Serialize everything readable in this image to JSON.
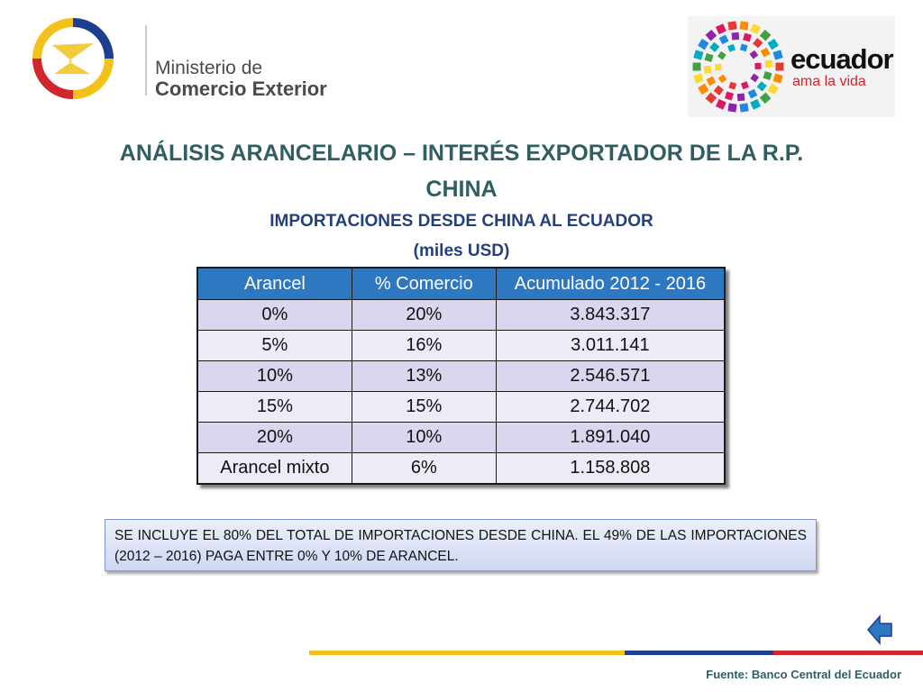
{
  "header": {
    "org_line1": "Ministerio de",
    "org_line2": "Comercio Exterior",
    "brand_name": "ecuador",
    "brand_slogan": "ama la vida"
  },
  "title": "ANÁLISIS ARANCELARIO – INTERÉS EXPORTADOR DE LA R.P. CHINA",
  "subtitle_line1": "IMPORTACIONES DESDE CHINA AL ECUADOR",
  "subtitle_line2": "(miles USD)",
  "table": {
    "headers": [
      "Arancel",
      "% Comercio",
      "Acumulado 2012 - 2016"
    ],
    "rows": [
      [
        "0%",
        "20%",
        "3.843.317"
      ],
      [
        "5%",
        "16%",
        "3.011.141"
      ],
      [
        "10%",
        "13%",
        "2.546.571"
      ],
      [
        "15%",
        "15%",
        "2.744.702"
      ],
      [
        "20%",
        "10%",
        "1.891.040"
      ],
      [
        "Arancel mixto",
        "6%",
        "1.158.808"
      ]
    ]
  },
  "note": "SE INCLUYE EL 80% DEL TOTAL DE IMPORTACIONES DESDE CHINA. EL 49% DE LAS IMPORTACIONES (2012 – 2016) PAGA ENTRE 0% Y 10% DE ARANCEL.",
  "source": "Fuente: Banco Central del Ecuador",
  "icons": {
    "back": "back-arrow-icon"
  },
  "colors": {
    "title": "#2f5f61",
    "subtitle": "#243f7a",
    "table_header": "#2e78c2",
    "row_odd": "#d9d7ef",
    "row_even": "#ecebf6",
    "stripe_yellow": "#f2c21b",
    "stripe_blue": "#1c3f94",
    "stripe_red": "#d0262d"
  }
}
